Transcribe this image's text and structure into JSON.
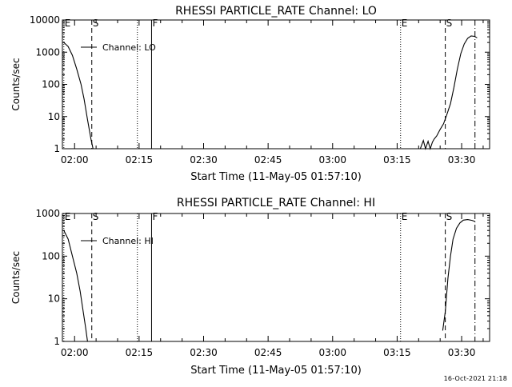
{
  "chart_data": [
    {
      "type": "line",
      "title": "RHESSI PARTICLE_RATE Channel: LO",
      "xlabel": "Start Time (11-May-05 01:57:10)",
      "ylabel": "Counts/sec",
      "yscale": "log",
      "ylim": [
        1,
        10000
      ],
      "y_ticks": [
        1,
        10,
        100,
        1000,
        10000
      ],
      "y_tick_labels": [
        "1",
        "10",
        "100",
        "1000",
        "10000"
      ],
      "xlim_min": [
        -2.833,
        96.5
      ],
      "x_ticks_min": [
        0,
        15,
        30,
        45,
        60,
        75,
        90
      ],
      "x_tick_labels": [
        "02:00",
        "02:15",
        "02:30",
        "02:45",
        "03:00",
        "03:15",
        "03:30"
      ],
      "legend": {
        "label": "Channel: LO",
        "placement": "top-left"
      },
      "markers": [
        {
          "label": "E",
          "x_min": -2.5,
          "style": "dotted"
        },
        {
          "label": "S",
          "x_min": 4.0,
          "style": "dashed"
        },
        {
          "label": "",
          "x_min": 14.6,
          "style": "dotted"
        },
        {
          "label": "F",
          "x_min": 17.9,
          "style": "solid"
        },
        {
          "label": "E",
          "x_min": 75.8,
          "style": "dotted"
        },
        {
          "label": "S",
          "x_min": 86.2,
          "style": "dashed"
        },
        {
          "label": "",
          "x_min": 93.1,
          "style": "dashdot"
        }
      ],
      "series": [
        {
          "name": "Channel: LO",
          "segments": [
            [
              [
                -2.5,
                2000
              ],
              [
                -1.5,
                1500
              ],
              [
                -0.5,
                800
              ],
              [
                0.5,
                300
              ],
              [
                1.5,
                100
              ],
              [
                2.2,
                35
              ],
              [
                3.0,
                8
              ],
              [
                3.8,
                2
              ],
              [
                4.3,
                1
              ]
            ],
            [
              [
                80.4,
                1
              ],
              [
                81.1,
                1.8
              ],
              [
                81.6,
                1
              ],
              [
                82.2,
                1.7
              ],
              [
                82.7,
                1
              ],
              [
                83.2,
                1.6
              ],
              [
                83.6,
                2
              ],
              [
                84.2,
                2.5
              ],
              [
                85.0,
                4
              ],
              [
                85.8,
                6
              ],
              [
                86.6,
                12
              ],
              [
                87.4,
                25
              ],
              [
                88.2,
                80
              ],
              [
                89.0,
                300
              ],
              [
                89.8,
                900
              ],
              [
                90.6,
                1800
              ],
              [
                91.4,
                2700
              ],
              [
                92.2,
                3200
              ],
              [
                93.0,
                3100
              ],
              [
                93.6,
                2800
              ]
            ]
          ]
        }
      ]
    },
    {
      "type": "line",
      "title": "RHESSI PARTICLE_RATE Channel: HI",
      "xlabel": "Start Time (11-May-05 01:57:10)",
      "ylabel": "Counts/sec",
      "yscale": "log",
      "ylim": [
        1,
        1000
      ],
      "y_ticks": [
        1,
        10,
        100,
        1000
      ],
      "y_tick_labels": [
        "1",
        "10",
        "100",
        "1000"
      ],
      "xlim_min": [
        -2.833,
        96.5
      ],
      "x_ticks_min": [
        0,
        15,
        30,
        45,
        60,
        75,
        90
      ],
      "x_tick_labels": [
        "02:00",
        "02:15",
        "02:30",
        "02:45",
        "03:00",
        "03:15",
        "03:30"
      ],
      "legend": {
        "label": "Channel: HI",
        "placement": "top-left"
      },
      "markers": [
        {
          "label": "E",
          "x_min": -2.5,
          "style": "dotted"
        },
        {
          "label": "S",
          "x_min": 4.0,
          "style": "dashed"
        },
        {
          "label": "",
          "x_min": 14.6,
          "style": "dotted"
        },
        {
          "label": "F",
          "x_min": 17.9,
          "style": "solid"
        },
        {
          "label": "E",
          "x_min": 75.8,
          "style": "dotted"
        },
        {
          "label": "S",
          "x_min": 86.2,
          "style": "dashed"
        },
        {
          "label": "",
          "x_min": 93.1,
          "style": "dashdot"
        }
      ],
      "series": [
        {
          "name": "Channel: HI",
          "segments": [
            [
              [
                -2.5,
                400
              ],
              [
                -1.5,
                250
              ],
              [
                -0.5,
                100
              ],
              [
                0.5,
                40
              ],
              [
                1.3,
                15
              ],
              [
                2.0,
                5
              ],
              [
                2.6,
                2
              ],
              [
                3.0,
                1
              ]
            ],
            [
              [
                85.6,
                1.8
              ],
              [
                86.2,
                5
              ],
              [
                86.8,
                30
              ],
              [
                87.4,
                100
              ],
              [
                88.0,
                250
              ],
              [
                88.8,
                450
              ],
              [
                89.6,
                600
              ],
              [
                90.4,
                700
              ],
              [
                91.4,
                720
              ],
              [
                92.4,
                690
              ],
              [
                93.1,
                650
              ]
            ]
          ]
        }
      ]
    }
  ],
  "footer": {
    "timestamp": "16-Oct-2021 21:18"
  }
}
